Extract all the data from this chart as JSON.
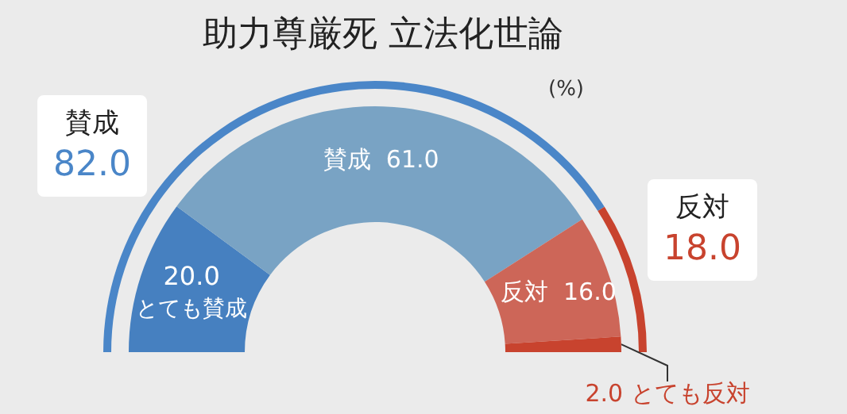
{
  "chart_data": [
    {
      "type": "donut",
      "title": "助力尊厳死 立法化世論",
      "annotations": [
        "(%)"
      ],
      "categories": [
        "賛成",
        "反対"
      ],
      "values": [
        82.0,
        18.0
      ],
      "colors": [
        "#4a86c8",
        "#c8432e"
      ],
      "value_labels": [
        "82.0",
        "18.0"
      ],
      "legend": false
    },
    {
      "type": "donut",
      "categories": [
        "とても賛成",
        "賛成",
        "反対",
        "とても反対"
      ],
      "values": [
        20.0,
        61.0,
        16.0,
        2.0
      ],
      "colors": [
        "#4680c0",
        "#79a3c4",
        "#cd6658",
        "#c8432e"
      ],
      "value_labels": [
        "20.0",
        "61.0",
        "16.0",
        "2.0"
      ],
      "legend": false
    }
  ]
}
